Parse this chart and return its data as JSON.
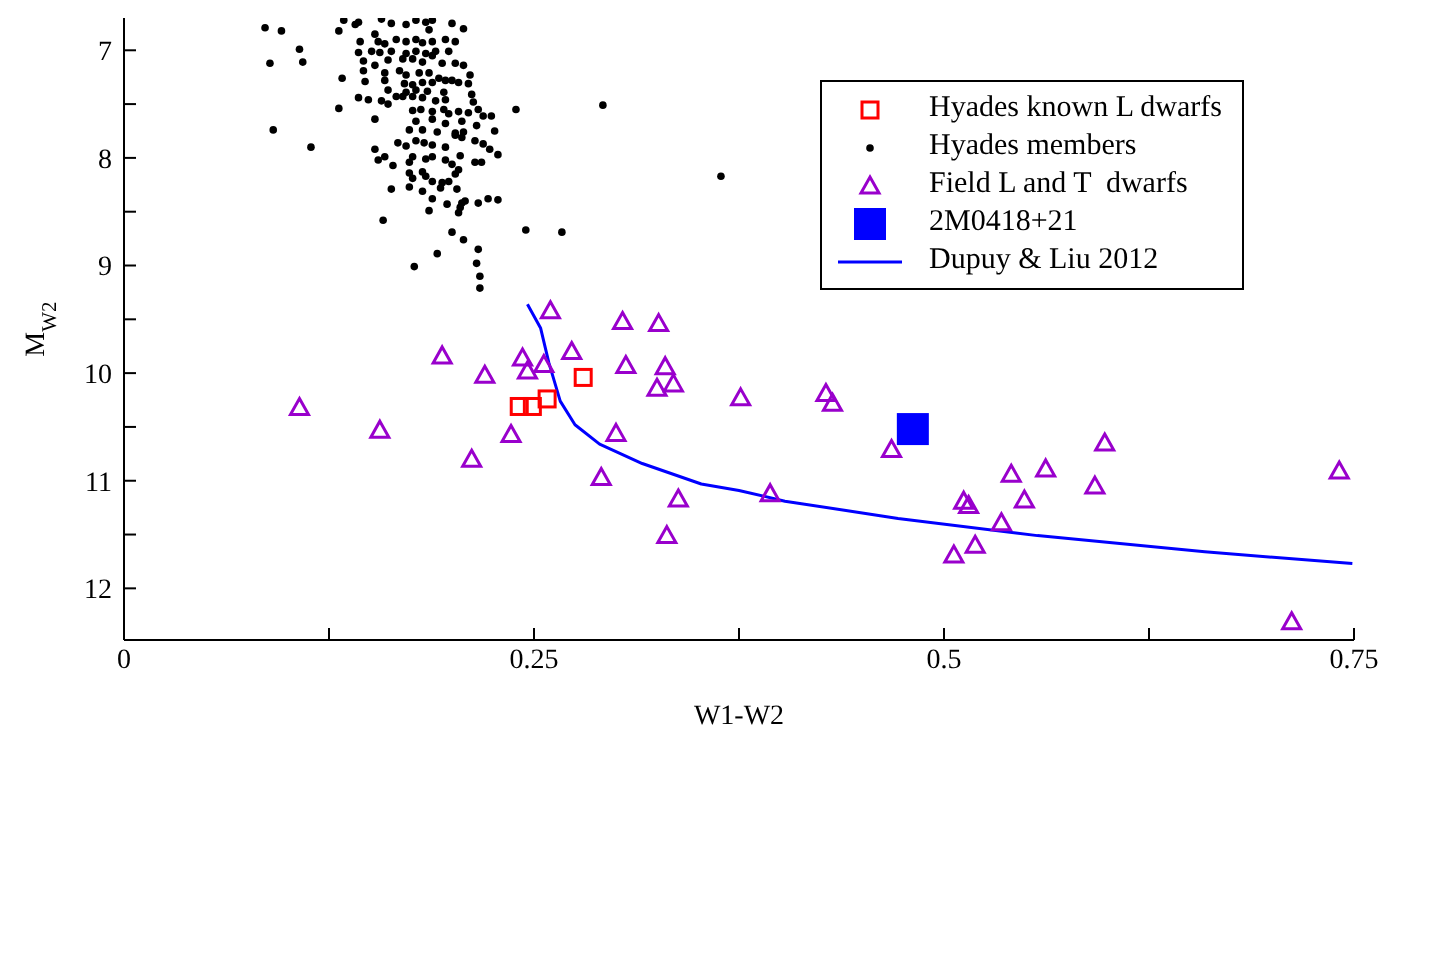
{
  "chart_data": {
    "type": "scatter",
    "xlabel": "W1-W2",
    "ylabel": "M$_{W2}$",
    "xlim": [
      0,
      0.75
    ],
    "ylim": [
      12.48,
      6.7
    ],
    "xticks": [
      0,
      {
        "value": 0.125,
        "label": null
      },
      0.25,
      {
        "value": 0.375,
        "label": null
      },
      0.5,
      {
        "value": 0.625,
        "label": null
      },
      0.75
    ],
    "yticks": [
      7,
      {
        "value": 7.5,
        "label": null
      },
      8,
      {
        "value": 8.5,
        "label": null
      },
      9,
      {
        "value": 9.5,
        "label": null
      },
      10,
      {
        "value": 10.5,
        "label": null
      },
      11,
      {
        "value": 11.5,
        "label": null
      },
      12
    ],
    "legend": "top right",
    "series": [
      {
        "name": "Hyades known L dwarfs",
        "marker": "square",
        "color": "#ff0000",
        "x": [
          0.28,
          0.241,
          0.249,
          0.258
        ],
        "values": [
          10.04,
          10.31,
          10.31,
          10.24
        ]
      },
      {
        "name": "Hyades members",
        "marker": "circle",
        "color": "#000000",
        "x": [
          0.086,
          0.096,
          0.107,
          0.089,
          0.109,
          0.091,
          0.114,
          0.131,
          0.133,
          0.153,
          0.158,
          0.177,
          0.191,
          0.2,
          0.207,
          0.216,
          0.215,
          0.217,
          0.217,
          0.245,
          0.267,
          0.239,
          0.292,
          0.364,
          0.134,
          0.131,
          0.141,
          0.143,
          0.157,
          0.163,
          0.172,
          0.178,
          0.184,
          0.186,
          0.188,
          0.2,
          0.207,
          0.144,
          0.153,
          0.155,
          0.159,
          0.166,
          0.172,
          0.178,
          0.182,
          0.188,
          0.196,
          0.202,
          0.143,
          0.151,
          0.156,
          0.163,
          0.172,
          0.178,
          0.184,
          0.19,
          0.198,
          0.146,
          0.153,
          0.161,
          0.17,
          0.176,
          0.182,
          0.188,
          0.194,
          0.202,
          0.207,
          0.146,
          0.159,
          0.168,
          0.172,
          0.18,
          0.186,
          0.192,
          0.2,
          0.211,
          0.147,
          0.159,
          0.171,
          0.176,
          0.182,
          0.188,
          0.196,
          0.204,
          0.21,
          0.161,
          0.172,
          0.178,
          0.185,
          0.195,
          0.212,
          0.143,
          0.149,
          0.157,
          0.166,
          0.17,
          0.176,
          0.182,
          0.19,
          0.196,
          0.213,
          0.161,
          0.176,
          0.181,
          0.188,
          0.195,
          0.198,
          0.204,
          0.21,
          0.216,
          0.219,
          0.224,
          0.178,
          0.188,
          0.196,
          0.206,
          0.215,
          0.174,
          0.182,
          0.191,
          0.202,
          0.207,
          0.226,
          0.167,
          0.172,
          0.178,
          0.183,
          0.188,
          0.196,
          0.202,
          0.206,
          0.214,
          0.219,
          0.223,
          0.153,
          0.155,
          0.159,
          0.164,
          0.174,
          0.176,
          0.184,
          0.188,
          0.196,
          0.2,
          0.205,
          0.214,
          0.218,
          0.228,
          0.174,
          0.182,
          0.184,
          0.176,
          0.188,
          0.194,
          0.198,
          0.202,
          0.204,
          0.163,
          0.174,
          0.182,
          0.193,
          0.203,
          0.188,
          0.197,
          0.206,
          0.208,
          0.216,
          0.222,
          0.228,
          0.186,
          0.204,
          0.205
        ],
        "values": [
          6.79,
          6.82,
          6.99,
          7.12,
          7.11,
          7.74,
          7.9,
          7.54,
          7.26,
          7.64,
          8.58,
          9.01,
          8.89,
          8.69,
          8.76,
          8.85,
          8.98,
          9.1,
          9.21,
          8.67,
          8.69,
          7.55,
          7.51,
          8.17,
          6.72,
          6.82,
          6.76,
          6.74,
          6.71,
          6.75,
          6.76,
          6.72,
          6.74,
          6.81,
          6.72,
          6.75,
          6.8,
          6.92,
          6.85,
          6.92,
          6.94,
          6.9,
          6.92,
          6.9,
          6.93,
          6.92,
          6.9,
          6.92,
          7.02,
          7.01,
          7.02,
          7.01,
          7.03,
          7.01,
          7.03,
          7.01,
          7.01,
          7.1,
          7.14,
          7.09,
          7.08,
          7.08,
          7.11,
          7.05,
          7.12,
          7.12,
          7.14,
          7.19,
          7.21,
          7.19,
          7.23,
          7.21,
          7.21,
          7.26,
          7.28,
          7.23,
          7.29,
          7.28,
          7.31,
          7.32,
          7.3,
          7.3,
          7.28,
          7.3,
          7.31,
          7.37,
          7.39,
          7.37,
          7.38,
          7.39,
          7.41,
          7.44,
          7.46,
          7.47,
          7.43,
          7.43,
          7.43,
          7.44,
          7.47,
          7.46,
          7.48,
          7.5,
          7.56,
          7.55,
          7.57,
          7.55,
          7.59,
          7.57,
          7.58,
          7.55,
          7.61,
          7.61,
          7.66,
          7.64,
          7.68,
          7.66,
          7.7,
          7.74,
          7.74,
          7.76,
          7.77,
          7.76,
          7.75,
          7.86,
          7.89,
          7.84,
          7.86,
          7.88,
          7.9,
          7.79,
          7.81,
          7.84,
          7.87,
          7.92,
          7.92,
          8.02,
          7.99,
          8.07,
          8.04,
          7.99,
          8.01,
          7.99,
          8.02,
          8.06,
          7.98,
          8.04,
          8.04,
          7.97,
          8.14,
          8.13,
          8.17,
          8.19,
          8.22,
          8.23,
          8.22,
          8.15,
          8.11,
          8.29,
          8.27,
          8.31,
          8.28,
          8.29,
          8.38,
          8.43,
          8.42,
          8.4,
          8.42,
          8.38,
          8.39,
          8.49,
          8.51,
          8.46
        ]
      },
      {
        "name": "Field L and T  dwarfs",
        "marker": "triangle",
        "color": "#9900cc",
        "x": [
          0.107,
          0.156,
          0.194,
          0.22,
          0.212,
          0.236,
          0.243,
          0.246,
          0.256,
          0.26,
          0.273,
          0.304,
          0.326,
          0.306,
          0.33,
          0.325,
          0.335,
          0.376,
          0.3,
          0.291,
          0.338,
          0.331,
          0.428,
          0.432,
          0.468,
          0.394,
          0.598,
          0.562,
          0.541,
          0.592,
          0.549,
          0.512,
          0.515,
          0.535,
          0.519,
          0.506,
          0.741,
          0.712
        ],
        "values": [
          10.32,
          10.53,
          9.84,
          10.02,
          10.8,
          10.57,
          9.86,
          9.98,
          9.92,
          9.42,
          9.8,
          9.52,
          9.54,
          9.93,
          9.94,
          10.14,
          10.1,
          10.23,
          10.56,
          10.97,
          11.17,
          11.51,
          10.19,
          10.28,
          10.71,
          11.12,
          10.65,
          10.89,
          10.94,
          11.05,
          11.18,
          11.19,
          11.23,
          11.39,
          11.6,
          11.69,
          10.91,
          12.31
        ]
      },
      {
        "name": "2M0418+21",
        "type": "bubble",
        "marker": "square",
        "color": "#0000ff",
        "x": [
          0.481
        ],
        "values": [
          10.52
        ],
        "sizes": [
          1
        ]
      },
      {
        "name": "Dupuy & Liu 2012",
        "type": "line",
        "marker": "none",
        "color": "#0000ff",
        "x": [
          0.246,
          0.254,
          0.259,
          0.266,
          0.275,
          0.29,
          0.316,
          0.352,
          0.375,
          0.403,
          0.472,
          0.557,
          0.659,
          0.749
        ],
        "values": [
          9.36,
          9.58,
          9.9,
          10.26,
          10.48,
          10.66,
          10.84,
          11.03,
          11.09,
          11.19,
          11.35,
          11.51,
          11.66,
          11.77
        ]
      }
    ]
  }
}
